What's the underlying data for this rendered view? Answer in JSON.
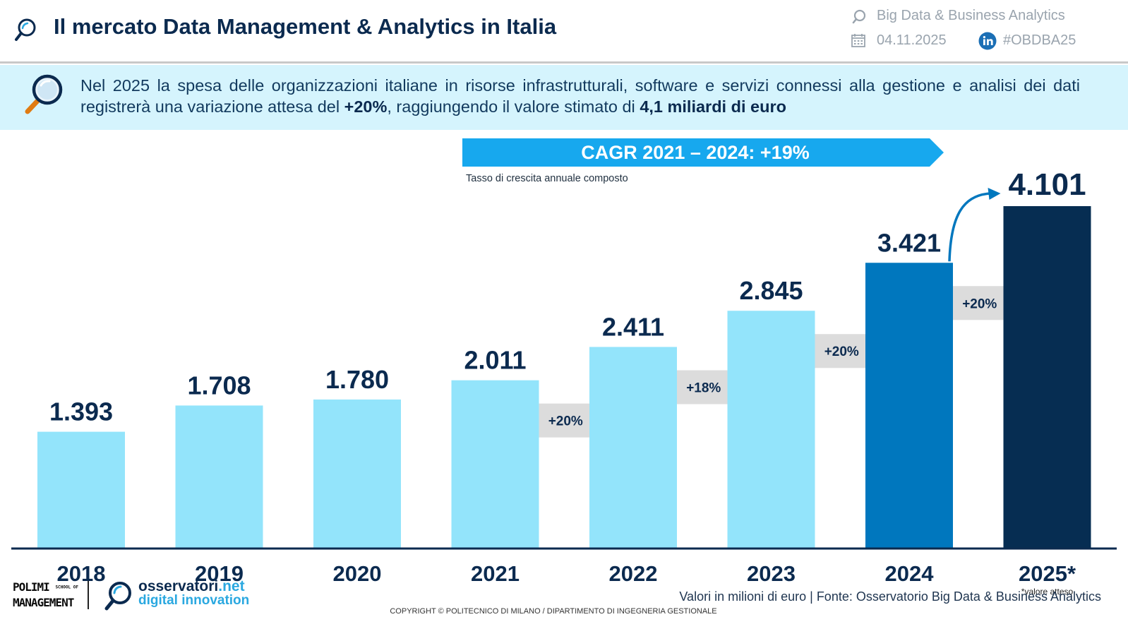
{
  "header": {
    "title": "Il mercato Data Management & Analytics in Italia",
    "topic": "Big Data & Business Analytics",
    "date": "04.11.2025",
    "hashtag": "#OBDBA25"
  },
  "banner": {
    "text_part1": "Nel 2025 la spesa delle organizzazioni italiane in risorse infrastrutturali, software e servizi connessi alla gestione e analisi dei dati registrerà una variazione attesa del ",
    "growth": "+20%",
    "text_part2": ", raggiungendo il valore stimato di ",
    "amount": "4,1 miliardi di euro"
  },
  "cagr": {
    "label": "CAGR 2021 – 2024: +19%",
    "note": "Tasso di crescita annuale composto"
  },
  "chart_data": {
    "type": "bar",
    "categories": [
      "2018",
      "2019",
      "2020",
      "2021",
      "2022",
      "2023",
      "2024",
      "2025*"
    ],
    "values": [
      1393,
      1708,
      1780,
      2011,
      2411,
      2845,
      3421,
      4101
    ],
    "value_labels": [
      "1.393",
      "1.708",
      "1.780",
      "2.011",
      "2.411",
      "2.845",
      "3.421",
      "4.101"
    ],
    "growth_labels": [
      {
        "from": "2021",
        "to": "2022",
        "label": "+20%"
      },
      {
        "from": "2022",
        "to": "2023",
        "label": "+18%"
      },
      {
        "from": "2023",
        "to": "2024",
        "label": "+20%"
      },
      {
        "from": "2024",
        "to": "2025*",
        "label": "+20%"
      }
    ],
    "footnote": "*valore atteso",
    "ylim": [
      0,
      4101
    ],
    "grid": false,
    "colors": {
      "historic": "#93e4fb",
      "current": "#0077be",
      "expected": "#062d52",
      "arrow": "#dcdcdc",
      "label": "#0b2a4f",
      "axis": "#0b2a4f"
    }
  },
  "footer": {
    "logo_polimi_1": "POLIMI",
    "logo_polimi_2": "MANAGEMENT",
    "logo_polimi_small": "SCHOOL OF",
    "logo_oss_1": "osservatori",
    "logo_oss_1b": ".net",
    "logo_oss_2": "digital innovation",
    "source": "Valori in milioni di euro | Fonte: Osservatorio Big Data & Business Analytics",
    "copyright": "COPYRIGHT © POLITECNICO DI MILANO / DIPARTIMENTO DI INGEGNERIA GESTIONALE"
  }
}
